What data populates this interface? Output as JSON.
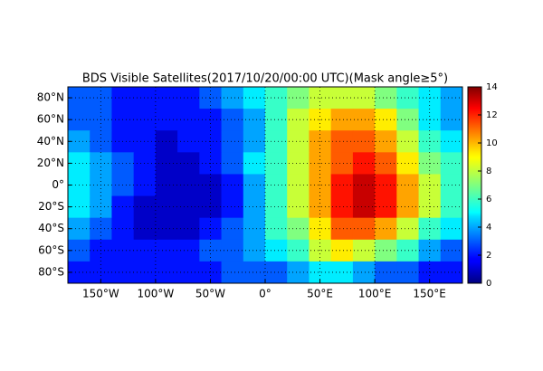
{
  "chart_data": {
    "type": "heatmap",
    "title": "BDS Visible Satellites(2017/10/20/00:00 UTC)(Mask angle≥5°)",
    "colormap": "jet",
    "grid": true,
    "x": [
      -170,
      -150,
      -130,
      -110,
      -90,
      -70,
      -50,
      -30,
      -10,
      10,
      30,
      50,
      70,
      90,
      110,
      130,
      150,
      170
    ],
    "y": [
      80,
      60,
      40,
      20,
      0,
      -20,
      -40,
      -60,
      -80
    ],
    "values": [
      [
        3,
        3,
        2,
        2,
        2,
        2,
        3,
        4,
        5,
        6,
        7,
        8,
        8,
        8,
        7,
        6,
        5,
        4
      ],
      [
        3,
        3,
        2,
        2,
        2,
        2,
        2,
        3,
        4,
        6,
        8,
        9,
        10,
        10,
        9,
        7,
        5,
        4
      ],
      [
        4,
        3,
        2,
        2,
        1,
        2,
        2,
        3,
        4,
        6,
        8,
        10,
        11,
        11,
        10,
        8,
        6,
        5
      ],
      [
        5,
        4,
        3,
        2,
        1,
        1,
        2,
        3,
        5,
        6,
        8,
        10,
        11,
        12,
        11,
        9,
        7,
        6
      ],
      [
        5,
        4,
        3,
        2,
        1,
        1,
        1,
        2,
        4,
        6,
        8,
        10,
        12,
        13,
        12,
        10,
        8,
        6
      ],
      [
        5,
        4,
        2,
        1,
        1,
        1,
        1,
        2,
        4,
        6,
        8,
        10,
        12,
        13,
        12,
        10,
        8,
        6
      ],
      [
        4,
        3,
        2,
        1,
        1,
        1,
        2,
        3,
        4,
        6,
        7,
        9,
        11,
        11,
        10,
        8,
        6,
        5
      ],
      [
        3,
        2,
        2,
        2,
        2,
        2,
        3,
        3,
        4,
        5,
        6,
        8,
        9,
        8,
        7,
        6,
        4,
        3
      ],
      [
        2,
        2,
        2,
        2,
        2,
        2,
        2,
        3,
        3,
        3,
        4,
        5,
        5,
        4,
        3,
        3,
        2,
        2
      ]
    ],
    "xlim": [
      -180,
      180
    ],
    "ylim": [
      -90,
      90
    ],
    "xticks": [
      {
        "value": -150,
        "label": "150°W"
      },
      {
        "value": -100,
        "label": "100°W"
      },
      {
        "value": -50,
        "label": "50°W"
      },
      {
        "value": 0,
        "label": "0°"
      },
      {
        "value": 50,
        "label": "50°E"
      },
      {
        "value": 100,
        "label": "100°E"
      },
      {
        "value": 150,
        "label": "150°E"
      }
    ],
    "yticks": [
      {
        "value": 80,
        "label": "80°N"
      },
      {
        "value": 60,
        "label": "60°N"
      },
      {
        "value": 40,
        "label": "40°N"
      },
      {
        "value": 20,
        "label": "20°N"
      },
      {
        "value": 0,
        "label": "0°"
      },
      {
        "value": -20,
        "label": "20°S"
      },
      {
        "value": -40,
        "label": "40°S"
      },
      {
        "value": -60,
        "label": "60°S"
      },
      {
        "value": -80,
        "label": "80°S"
      }
    ],
    "colorbar_lim": [
      0,
      14
    ],
    "colorbar_ticks": [
      0,
      2,
      4,
      6,
      8,
      10,
      12,
      14
    ]
  }
}
